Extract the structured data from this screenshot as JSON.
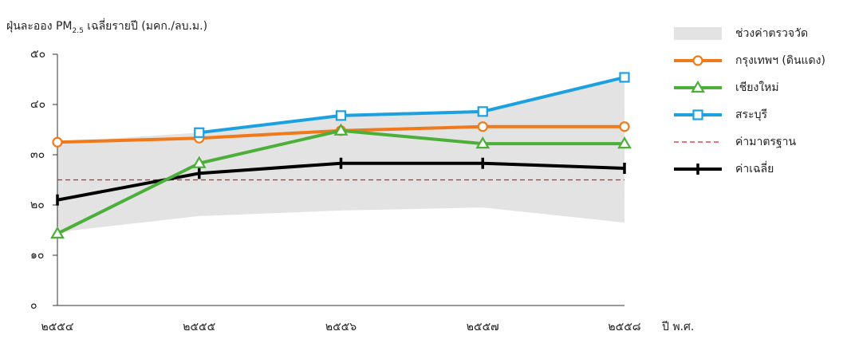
{
  "chart_data": {
    "type": "line",
    "title": "ฝุ่นละออง PM",
    "title_subscript": "2.5",
    "title_suffix": " เฉลี่ยรายปี (มคก./ลบ.ม.)",
    "x_label": "ปี พ.ศ.",
    "categories": [
      "๒๕๕๔",
      "๒๕๕๕",
      "๒๕๕๖",
      "๒๕๕๗",
      "๒๕๕๘"
    ],
    "ylim": [
      0,
      50
    ],
    "yticks": [
      {
        "value": 0,
        "label": "๐"
      },
      {
        "value": 10,
        "label": "๑๐"
      },
      {
        "value": 20,
        "label": "๒๐"
      },
      {
        "value": 30,
        "label": "๓๐"
      },
      {
        "value": 40,
        "label": "๔๐"
      },
      {
        "value": 50,
        "label": "๕๐"
      }
    ],
    "range": {
      "name": "ช่วงค่าตรวจวัด",
      "color": "#e3e3e3",
      "upper": [
        32.5,
        34.4,
        37.8,
        38.6,
        45
      ],
      "lower": [
        14.6,
        17.8,
        18.9,
        19.5,
        16.5
      ]
    },
    "series": [
      {
        "name": "กรุงเทพฯ (ดินแดง)",
        "color": "#f07a1a",
        "marker": "circle",
        "values": [
          32.5,
          33.3,
          34.8,
          35.6,
          35.6
        ]
      },
      {
        "name": "เชียงใหม่",
        "color": "#4caf3a",
        "marker": "triangle",
        "values": [
          14.3,
          28.3,
          34.8,
          32.2,
          32.2
        ]
      },
      {
        "name": "สระบุรี",
        "color": "#1ba0e2",
        "marker": "square",
        "values": [
          null,
          34.4,
          37.8,
          38.6,
          45.4
        ]
      }
    ],
    "standard": {
      "name": "ค่ามาตรฐาน",
      "color": "#e02020",
      "value": 25
    },
    "average": {
      "name": "ค่าเฉลี่ย",
      "color": "#000000",
      "values": [
        21,
        26.3,
        28.3,
        28.3,
        27.3
      ]
    },
    "legend": "right"
  }
}
